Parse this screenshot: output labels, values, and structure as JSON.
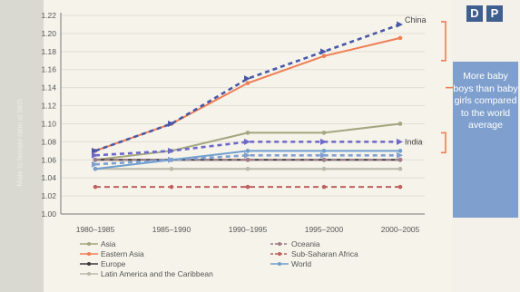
{
  "badge": {
    "d": "D",
    "p": "P"
  },
  "callout": {
    "text": "More baby boys than baby girls compared to the world average"
  },
  "ylabel": "Male to female ratio at birth",
  "chart_data": {
    "type": "line",
    "categories": [
      "1980–1985",
      "1985–1990",
      "1990–1995",
      "1995–2000",
      "2000–2005"
    ],
    "ylim": [
      1.0,
      1.22
    ],
    "yticks": [
      "1.00",
      "1.02",
      "1.04",
      "1.06",
      "1.08",
      "1.10",
      "1.12",
      "1.14",
      "1.16",
      "1.18",
      "1.20",
      "1.22"
    ],
    "grid": true,
    "series": [
      {
        "name": "Asia",
        "color": "#a3a67e",
        "style": "solid",
        "marker": "circle",
        "values": [
          1.06,
          1.07,
          1.09,
          1.09,
          1.1
        ]
      },
      {
        "name": "Eastern Asia",
        "color": "#f07e55",
        "style": "solid",
        "marker": "circle",
        "values": [
          1.07,
          1.1,
          1.145,
          1.175,
          1.195
        ]
      },
      {
        "name": "Europe",
        "color": "#3b3b3b",
        "style": "solid",
        "marker": "circle",
        "values": [
          1.06,
          1.06,
          1.06,
          1.06,
          1.06
        ]
      },
      {
        "name": "Latin America and the Caribbean",
        "color": "#b9b9aa",
        "style": "solid",
        "marker": "circle",
        "values": [
          1.05,
          1.05,
          1.05,
          1.05,
          1.05
        ]
      },
      {
        "name": "Oceania",
        "color": "#9f7a88",
        "style": "dashed",
        "marker": "circle",
        "values": [
          1.06,
          1.06,
          1.06,
          1.06,
          1.06
        ]
      },
      {
        "name": "Sub-Saharan Africa",
        "color": "#c0615f",
        "style": "dashed",
        "marker": "circle",
        "values": [
          1.03,
          1.03,
          1.03,
          1.03,
          1.03
        ]
      },
      {
        "name": "World",
        "color": "#6f9fcf",
        "style": "solid",
        "marker": "circle",
        "values": [
          1.05,
          1.06,
          1.07,
          1.07,
          1.07
        ]
      },
      {
        "name": "China",
        "color": "#4858a8",
        "style": "dashed",
        "marker": "arrow",
        "values": [
          1.07,
          1.1,
          1.15,
          1.18,
          1.21
        ],
        "label": "China"
      },
      {
        "name": "India",
        "color": "#6d68c9",
        "style": "dashed",
        "marker": "arrow",
        "values": [
          1.065,
          1.07,
          1.08,
          1.08,
          1.08
        ],
        "label": "India"
      },
      {
        "name": "",
        "color": "#7fa0d0",
        "style": "dashed",
        "marker": "arrow",
        "values": [
          1.055,
          1.06,
          1.065,
          1.065,
          1.065
        ]
      }
    ]
  }
}
